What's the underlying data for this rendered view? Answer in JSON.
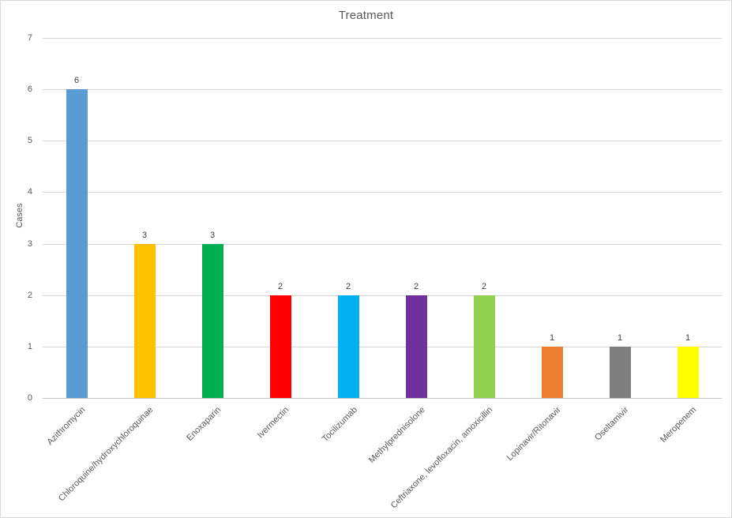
{
  "frame": {
    "background": "#FFFFFF",
    "border_color": "#D9D9D9"
  },
  "chart_data": {
    "type": "bar",
    "title": "Treatment",
    "xlabel": "",
    "ylabel": "Cases",
    "categories": [
      "Azithromycin",
      "Chloroquine/hydroxychloroquinae",
      "Enoxaparin",
      "Ivermectin",
      "Tocilizumab",
      "Methylprednisolone",
      "Ceftriaxone, levofloxacin, amoxicillin",
      "Lopinavir/Ritonavir",
      "Oseltamivir",
      "Meropenem"
    ],
    "values": [
      6,
      3,
      3,
      2,
      2,
      2,
      2,
      1,
      1,
      1
    ],
    "data_labels": [
      "6",
      "3",
      "3",
      "2",
      "2",
      "2",
      "2",
      "1",
      "1",
      "1"
    ],
    "bar_colors": [
      "#5B9BD5",
      "#FFC000",
      "#00B050",
      "#FF0000",
      "#00B0F0",
      "#7030A0",
      "#92D050",
      "#ED7D31",
      "#7F7F7F",
      "#FFFF00"
    ],
    "ylim": [
      0,
      7
    ],
    "yticks": [
      0,
      1,
      2,
      3,
      4,
      5,
      6,
      7
    ],
    "grid": true,
    "legend": "none",
    "x_label_rotation_deg": 45,
    "gridline_color": "#D9D9D9",
    "axis_text_color": "#595959",
    "value_label_color": "#404040"
  }
}
